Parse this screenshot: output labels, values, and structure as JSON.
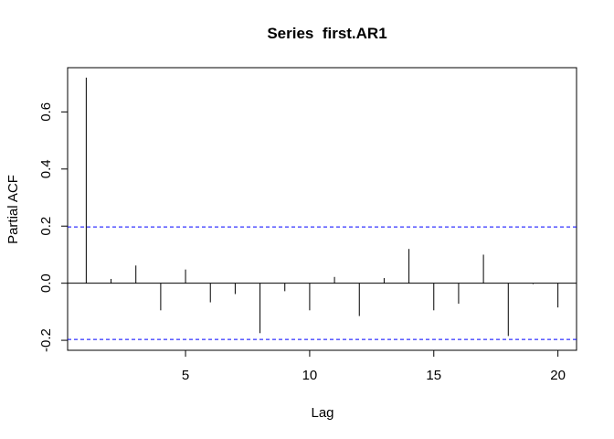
{
  "chart_data": {
    "type": "bar",
    "title": "Series  first.AR1",
    "xlabel": "Lag",
    "ylabel": "Partial ACF",
    "xlim": [
      0.25,
      20.75
    ],
    "ylim": [
      -0.235,
      0.755
    ],
    "x_ticks": [
      5,
      10,
      15,
      20
    ],
    "y_ticks": [
      -0.2,
      0.0,
      0.2,
      0.4,
      0.6
    ],
    "y_tick_labels": [
      "-0.2",
      "0.0",
      "0.2",
      "0.4",
      "0.6"
    ],
    "lags": [
      1,
      2,
      3,
      4,
      5,
      6,
      7,
      8,
      9,
      10,
      11,
      12,
      13,
      14,
      15,
      16,
      17,
      18,
      19,
      20
    ],
    "values": [
      0.72,
      0.015,
      0.062,
      -0.095,
      0.048,
      -0.067,
      -0.038,
      -0.175,
      -0.028,
      -0.095,
      0.022,
      -0.115,
      0.018,
      0.12,
      -0.095,
      -0.072,
      0.1,
      -0.185,
      -0.003,
      -0.085
    ],
    "confidence_bound": 0.197,
    "confidence_color": "#0000ff",
    "bar_color": "#000000",
    "grid": false
  }
}
